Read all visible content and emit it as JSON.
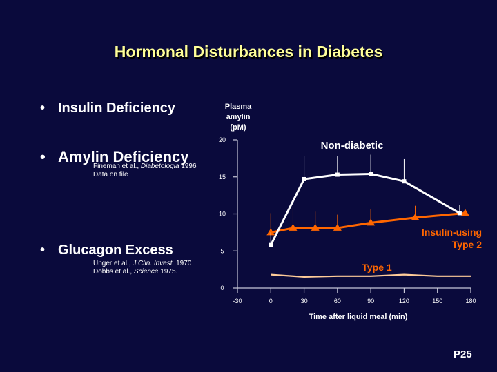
{
  "slide": {
    "title": "Hormonal Disturbances in Diabetes",
    "bullet_symbol": "•",
    "bullets": [
      {
        "text": "Insulin Deficiency"
      },
      {
        "text": "Amylin Deficiency",
        "refs": [
          [
            "Fineman et al., ",
            "Diabetologia",
            " 1996"
          ],
          [
            "Data on file"
          ]
        ]
      },
      {
        "text": "Glucagon Excess",
        "refs": [
          [
            "Unger et al., ",
            "J Clin. Invest.",
            " 1970"
          ],
          [
            "Dobbs et al., ",
            "Science",
            " 1975."
          ]
        ]
      }
    ],
    "page_number": "P25"
  },
  "chart_data": {
    "type": "line",
    "ylabel_lines": [
      "Plasma",
      "amylin",
      "(pM)"
    ],
    "xlabel": "Time after liquid meal (min)",
    "x_ticks": [
      -30,
      0,
      30,
      60,
      90,
      120,
      150,
      180
    ],
    "y_ticks": [
      0,
      5,
      10,
      15,
      20
    ],
    "xlim": [
      -30,
      180
    ],
    "ylim": [
      0,
      20
    ],
    "series": [
      {
        "name": "Non-diabetic",
        "color": "#ffffff",
        "marker": "square",
        "x": [
          0,
          30,
          60,
          90,
          120,
          170
        ],
        "y": [
          5.8,
          14.7,
          15.3,
          15.4,
          14.4,
          10.1
        ],
        "err_upper": [
          7.5,
          17.8,
          17.8,
          18.0,
          17.4,
          11.2
        ]
      },
      {
        "name": "Insulin-using Type 2",
        "color": "#ff6600",
        "marker": "triangle",
        "x": [
          0,
          20,
          40,
          60,
          90,
          130,
          175
        ],
        "y": [
          7.5,
          8.1,
          8.1,
          8.1,
          8.8,
          9.5,
          10.1
        ],
        "err_upper": [
          10.1,
          10.9,
          10.3,
          9.9,
          10.6,
          11.1,
          10.3
        ]
      },
      {
        "name": "Type 1",
        "color": "#ffcc99",
        "marker": "none",
        "x": [
          0,
          30,
          60,
          90,
          120,
          150,
          180
        ],
        "y": [
          1.8,
          1.5,
          1.6,
          1.6,
          1.8,
          1.6,
          1.6
        ]
      }
    ]
  }
}
